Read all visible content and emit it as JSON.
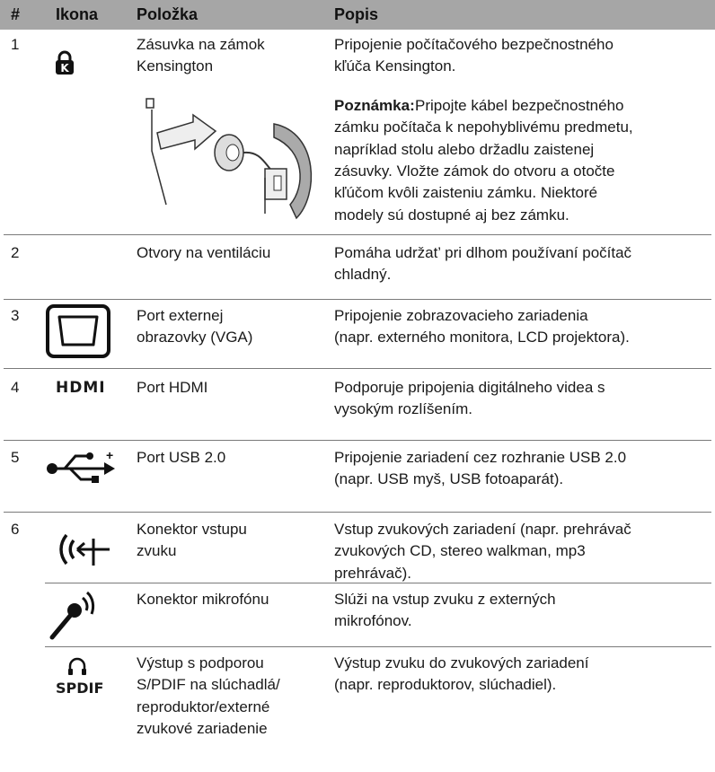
{
  "table": {
    "header": [
      "#",
      "Ikona",
      "Položka",
      "Popis"
    ],
    "rows": [
      {
        "number": "1",
        "item": [
          "Zásuvka na zámok",
          "Kensington"
        ],
        "description": [
          "Pripojenie počítačového bezpečnostného",
          "kľúča Kensington."
        ],
        "note_label": "Poznámka:",
        "note": [
          "Pripojte kábel bezpečnostného",
          "zámku počítača k nepohyblivému predmetu,",
          "napríklad stolu alebo držadlu zaistenej",
          "zásuvky. Vložte zámok do otvoru a otočte",
          "kľúčom kvôli zaisteniu zámku. Niektoré",
          "modely sú dostupné aj bez zámku."
        ]
      },
      {
        "number": "2",
        "item": [
          "Otvory na ventiláciu"
        ],
        "description": [
          "Pomáha udržat’ pri dlhom používaní počítač",
          "chladný."
        ]
      },
      {
        "number": "3",
        "item": [
          "Port externej",
          "obrazovky (VGA)"
        ],
        "description": [
          "Pripojenie zobrazovacieho zariadenia",
          "(napr. externého monitora, LCD projektora)."
        ]
      },
      {
        "number": "4",
        "icon_text": "HDMI",
        "item": [
          "Port HDMI"
        ],
        "description": [
          "Podporuje pripojenia digitálneho videa s",
          "vysokým rozlíšením."
        ]
      },
      {
        "number": "5",
        "item": [
          "Port USB 2.0"
        ],
        "description": [
          "Pripojenie zariadení cez rozhranie USB 2.0",
          "(napr. USB myš, USB fotoaparát)."
        ]
      },
      {
        "number": "6",
        "item": [
          "Konektor vstupu",
          "zvuku"
        ],
        "description": [
          "Vstup zvukových zariadení (napr. prehrávač",
          "zvukových CD, stereo walkman, mp3",
          "prehrávač)."
        ]
      },
      {
        "item": [
          "Konektor mikrofónu"
        ],
        "description": [
          "Slúži na vstup zvuku z externých",
          "mikrofónov."
        ]
      },
      {
        "icon_text": "SPDIF",
        "item": [
          "Výstup s podporou",
          "S/PDIF na slúchadlá/",
          "reproduktor/externé",
          "zvukové zariadenie"
        ],
        "description": [
          "Výstup zvuku do zvukových zariadení",
          "(napr. reproduktorov, slúchadiel)."
        ]
      }
    ]
  }
}
